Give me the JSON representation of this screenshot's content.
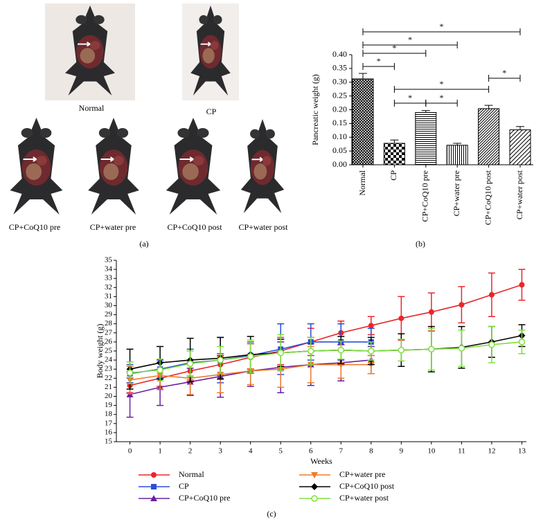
{
  "panel_a": {
    "labels": [
      "Normal",
      "CP",
      "CP+CoQ10 pre",
      "CP+water pre",
      "CP+CoQ10 post",
      "CP+water post"
    ],
    "panel_label": "(a)"
  },
  "chart_data": [
    {
      "type": "bar",
      "panel_label": "(b)",
      "y_label": "Pancreatic weight (g)",
      "categories": [
        "Normal",
        "CP",
        "CP+CoQ10 pre",
        "CP+water pre",
        "CP+CoQ10 post",
        "CP+water post"
      ],
      "values": [
        0.312,
        0.078,
        0.19,
        0.071,
        0.204,
        0.127
      ],
      "errors": [
        0.02,
        0.012,
        0.007,
        0.007,
        0.012,
        0.012
      ],
      "patterns": [
        "crosshatch",
        "checker",
        "horizontal",
        "vertical",
        "diagonal",
        "diagonal-wide"
      ],
      "color": "#000000",
      "ylim": [
        0,
        0.4
      ],
      "yticks": [
        {
          "value": 0,
          "label": "0.00"
        },
        {
          "value": 0.05,
          "label": "0.05"
        },
        {
          "value": 0.1,
          "label": "0.10"
        },
        {
          "value": 0.15,
          "label": "0.15"
        },
        {
          "value": 0.2,
          "label": "0.20"
        },
        {
          "value": 0.25,
          "label": "0.25"
        },
        {
          "value": 0.3,
          "label": "0.30"
        },
        {
          "value": 0.35,
          "label": "0.35"
        },
        {
          "value": 0.4,
          "label": "0.40"
        }
      ],
      "significance": [
        {
          "from": "Normal",
          "to": "CP",
          "label": "*"
        },
        {
          "from": "Normal",
          "to": "CP+CoQ10 pre",
          "label": "*"
        },
        {
          "from": "Normal",
          "to": "CP+water pre",
          "label": "*"
        },
        {
          "from": "Normal",
          "to": "CP+water post",
          "label": "*"
        },
        {
          "from": "CP",
          "to": "CP+CoQ10 pre",
          "label": "*"
        },
        {
          "from": "CP+CoQ10 pre",
          "to": "CP+water pre",
          "label": "*"
        },
        {
          "from": "CP",
          "to": "CP+CoQ10 post",
          "label": "*"
        },
        {
          "from": "CP+CoQ10 post",
          "to": "CP+water post",
          "label": "*"
        }
      ]
    },
    {
      "type": "line",
      "panel_label": "(c)",
      "x_label": "Weeks",
      "y_label": "Body weight (g)",
      "x": [
        0,
        1,
        2,
        3,
        4,
        5,
        6,
        7,
        8,
        9,
        10,
        11,
        12,
        13
      ],
      "xlim": [
        -0.45,
        13.15
      ],
      "xticks": [
        0,
        1,
        2,
        3,
        4,
        5,
        6,
        7,
        8,
        9,
        10,
        11,
        12,
        13
      ],
      "ylim": [
        15,
        35
      ],
      "yticks": [
        15,
        16,
        17,
        18,
        19,
        20,
        21,
        22,
        23,
        24,
        25,
        26,
        27,
        28,
        29,
        30,
        31,
        32,
        33,
        34,
        35
      ],
      "series": [
        {
          "name": "Normal",
          "color": "#e8262a",
          "marker": "circle",
          "values": [
            21.2,
            22.0,
            22.8,
            23.5,
            24.3,
            25.0,
            26.0,
            27.0,
            27.8,
            28.6,
            29.3,
            30.1,
            31.2,
            32.3
          ],
          "errors": [
            0.8,
            0.9,
            1.0,
            1.2,
            1.5,
            1.5,
            1.5,
            1.3,
            1.0,
            2.4,
            2.1,
            2.0,
            2.4,
            1.7
          ]
        },
        {
          "name": "CP",
          "color": "#2a4fd8",
          "marker": "square",
          "values": [
            22.5,
            23.0,
            23.7,
            24.0,
            24.5,
            25.2,
            26.0,
            26.0,
            26.0,
            null,
            null,
            null,
            null,
            null
          ],
          "errors": [
            1.0,
            1.0,
            1.5,
            2.5,
            1.5,
            2.8,
            2.0,
            2.0,
            1.5,
            null,
            null,
            null,
            null,
            null
          ]
        },
        {
          "name": "CP+CoQ10 pre",
          "color": "#6a1fa0",
          "marker": "triangle",
          "values": [
            20.2,
            21.0,
            21.6,
            22.2,
            22.8,
            23.2,
            23.5,
            23.7,
            24.0,
            null,
            null,
            null,
            null,
            null
          ],
          "errors": [
            2.5,
            2.0,
            1.5,
            2.3,
            1.7,
            2.8,
            2.3,
            2.0,
            1.5,
            null,
            null,
            null,
            null,
            null
          ]
        },
        {
          "name": "CP+water pre",
          "color": "#f07a2a",
          "marker": "triangle-down",
          "values": [
            21.8,
            22.3,
            22.0,
            22.4,
            22.8,
            23.0,
            23.5,
            23.5,
            23.5,
            null,
            null,
            null,
            null,
            null
          ],
          "errors": [
            1.5,
            1.5,
            1.8,
            2.0,
            1.5,
            2.0,
            2.0,
            1.5,
            1.0,
            null,
            null,
            null,
            null,
            null
          ]
        },
        {
          "name": "CP+CoQ10 post",
          "color": "#000000",
          "marker": "diamond",
          "values": [
            23.0,
            23.7,
            24.0,
            24.2,
            24.6,
            24.8,
            25.0,
            25.1,
            25.0,
            25.1,
            25.2,
            25.4,
            26.0,
            26.7
          ],
          "errors": [
            2.2,
            1.8,
            2.4,
            2.3,
            2.0,
            1.5,
            1.5,
            1.5,
            1.5,
            1.8,
            2.5,
            2.3,
            1.7,
            1.2
          ]
        },
        {
          "name": "CP+water post",
          "color": "#7ee03a",
          "marker": "circle-open",
          "values": [
            22.6,
            22.9,
            23.6,
            24.0,
            24.4,
            24.8,
            25.0,
            25.1,
            25.0,
            25.1,
            25.2,
            25.3,
            25.7,
            26.0
          ],
          "errors": [
            1.2,
            1.2,
            1.4,
            1.5,
            1.8,
            2.0,
            1.5,
            1.0,
            1.0,
            1.2,
            2.3,
            2.0,
            2.0,
            1.3
          ]
        }
      ]
    }
  ]
}
